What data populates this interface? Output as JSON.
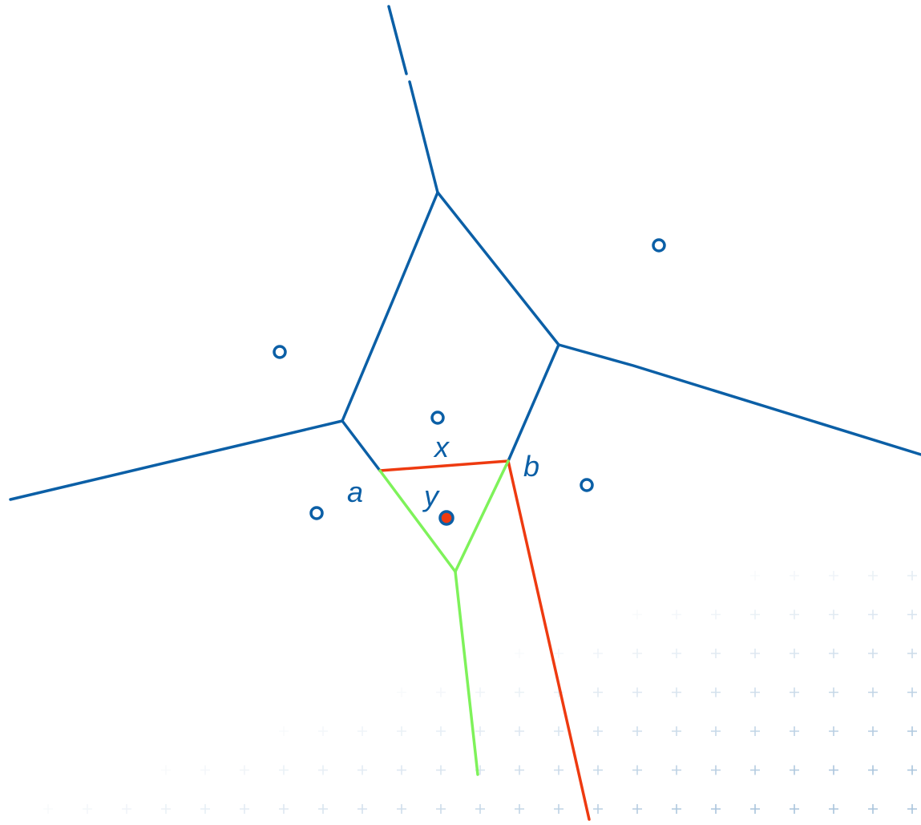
{
  "colors": {
    "blue": "#0b5fa6",
    "red": "#ee3a10",
    "green": "#7ef25a",
    "grid": "#a9c4dc"
  },
  "labels": {
    "a": "a",
    "b": "b",
    "x": "x",
    "y": "y"
  }
}
